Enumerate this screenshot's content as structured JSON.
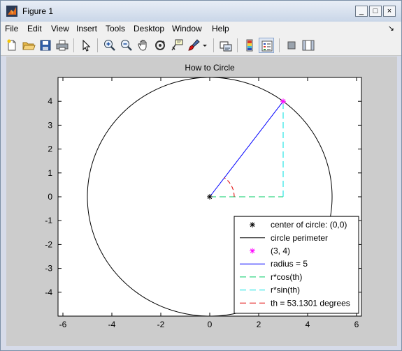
{
  "window": {
    "title": "Figure 1",
    "minimize_label": "_",
    "maximize_label": "□",
    "close_label": "×"
  },
  "menu": {
    "items": [
      "File",
      "Edit",
      "View",
      "Insert",
      "Tools",
      "Desktop",
      "Window",
      "Help"
    ],
    "dock_arrow": "↘"
  },
  "toolbar": {
    "icons": [
      "new-figure-icon",
      "open-file-icon",
      "save-icon",
      "print-icon",
      "edit-plot-arrow-icon",
      "zoom-in-icon",
      "zoom-out-icon",
      "pan-hand-icon",
      "rotate-3d-icon",
      "data-cursor-icon",
      "brush-icon",
      "brush-dropdown-icon",
      "link-plot-icon",
      "insert-colorbar-icon",
      "insert-legend-icon",
      "hide-plot-tools-icon",
      "show-plot-tools-icon"
    ]
  },
  "chart_data": {
    "type": "line",
    "title": "How to Circle",
    "xlabel": "",
    "ylabel": "",
    "xlim": [
      -6.2,
      6.2
    ],
    "ylim": [
      -5,
      5
    ],
    "x_ticks": [
      -6,
      -4,
      -2,
      0,
      2,
      4,
      6
    ],
    "y_ticks": [
      -4,
      -3,
      -2,
      -1,
      0,
      1,
      2,
      3,
      4
    ],
    "grid": false,
    "legend_position": "bottom-right",
    "series": [
      {
        "name": "center of circle: (0,0)",
        "kind": "marker",
        "marker": "*",
        "color": "#000000",
        "x": [
          0
        ],
        "y": [
          0
        ]
      },
      {
        "name": "circle perimeter",
        "kind": "circle",
        "color": "#000000",
        "center": [
          0,
          0
        ],
        "radius": 5
      },
      {
        "name": "(3, 4)",
        "kind": "marker",
        "marker": "*",
        "color": "#ff00ff",
        "x": [
          3
        ],
        "y": [
          4
        ]
      },
      {
        "name": "radius = 5",
        "kind": "line",
        "style": "solid",
        "color": "#0000ff",
        "x": [
          0,
          3
        ],
        "y": [
          0,
          4
        ]
      },
      {
        "name": "r*cos(th)",
        "kind": "line",
        "style": "dashed",
        "color": "#00cc66",
        "x": [
          0,
          3
        ],
        "y": [
          0,
          0
        ]
      },
      {
        "name": "r*sin(th)",
        "kind": "line",
        "style": "dashed",
        "color": "#00e0e0",
        "x": [
          3,
          3
        ],
        "y": [
          0,
          4
        ]
      },
      {
        "name": "th = 53.1301 degrees",
        "kind": "arc",
        "style": "dashed",
        "color": "#e00000",
        "center": [
          0,
          0
        ],
        "radius": 1,
        "theta_deg": [
          0,
          53.1301
        ]
      }
    ]
  }
}
